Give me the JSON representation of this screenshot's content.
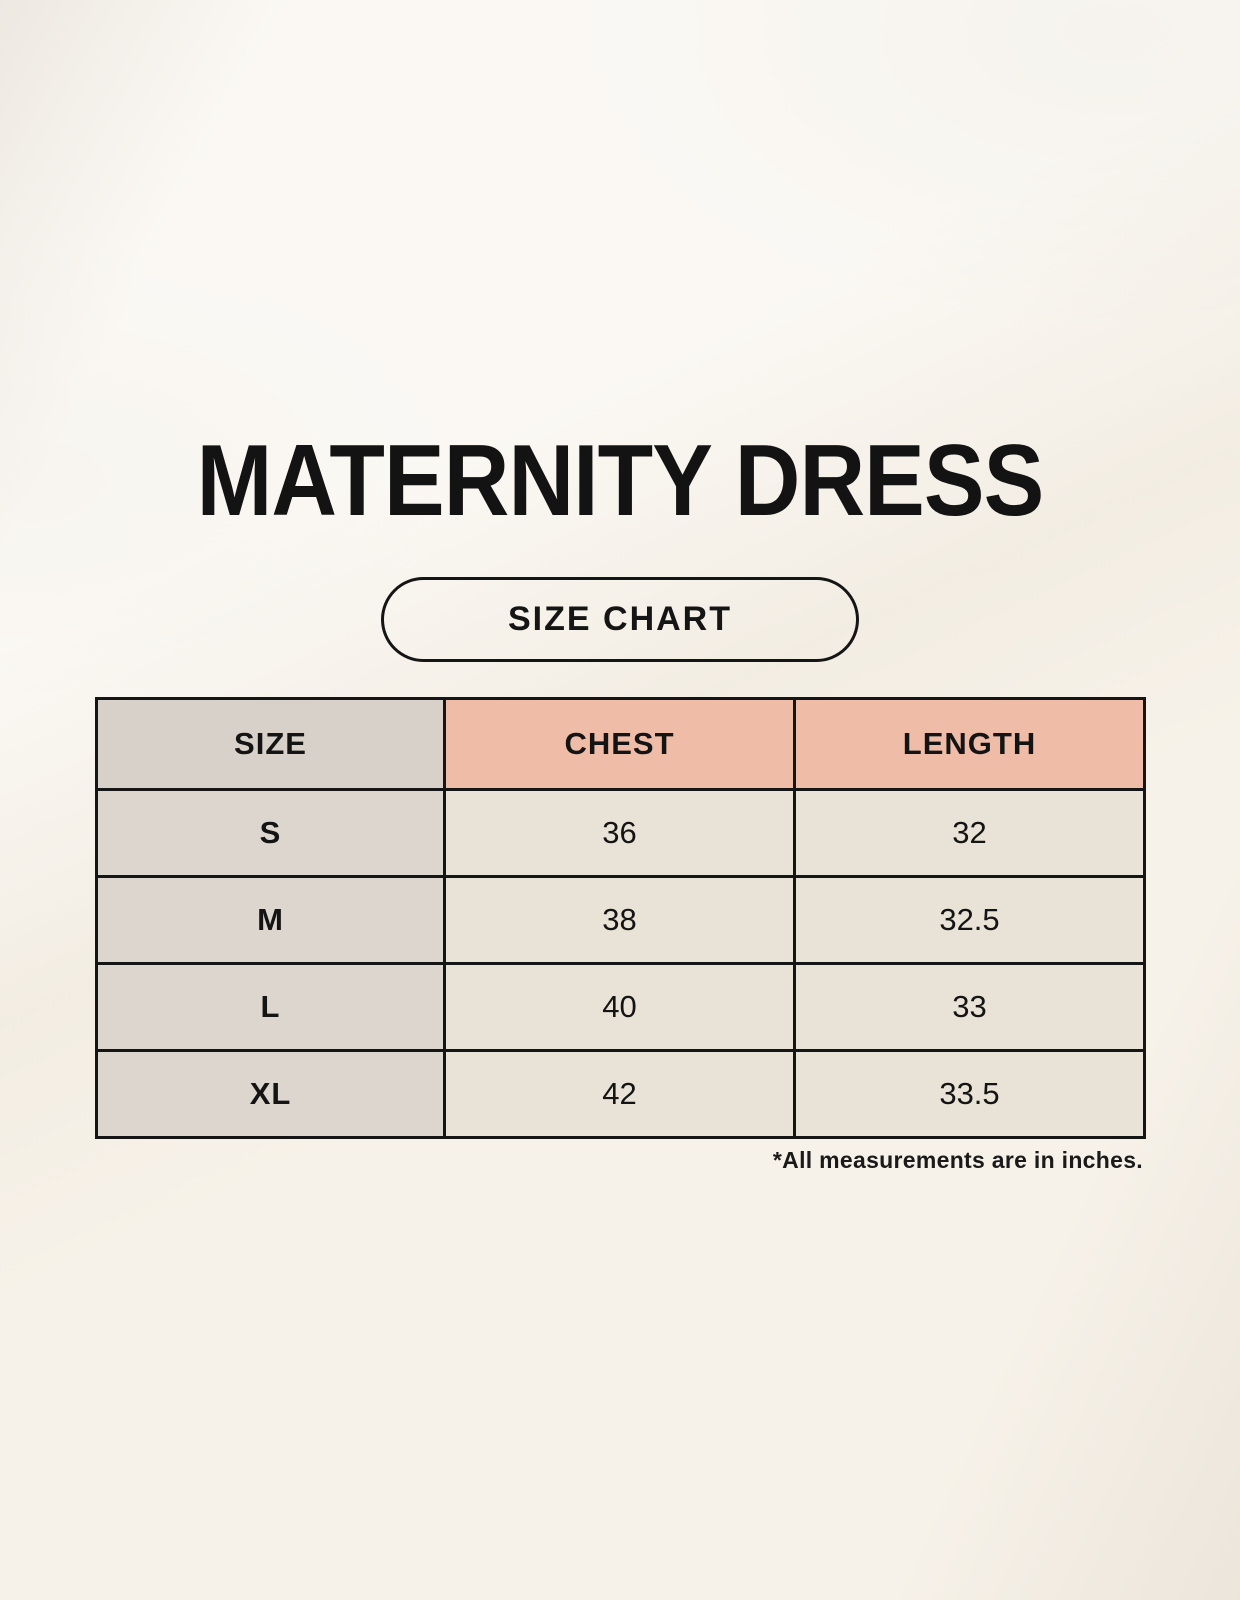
{
  "page": {
    "background_color": "#f7f2e9",
    "border_color": "#151515",
    "accent_pink": "#efbca8",
    "size_header_gray": "#d7d1ca",
    "size_cell_gray": "#ddd6cf",
    "value_cell_cream": "#e9e2d6"
  },
  "chart_data": {
    "type": "table",
    "title": "MATERNITY DRESS",
    "subtitle": "SIZE CHART",
    "columns": [
      "SIZE",
      "CHEST",
      "LENGTH"
    ],
    "rows": [
      [
        "S",
        "36",
        "32"
      ],
      [
        "M",
        "38",
        "32.5"
      ],
      [
        "L",
        "40",
        "33"
      ],
      [
        "XL",
        "42",
        "33.5"
      ]
    ],
    "footnote": "*All measurements are in inches.",
    "units": "inches",
    "legend_position": "none",
    "grid": true
  }
}
